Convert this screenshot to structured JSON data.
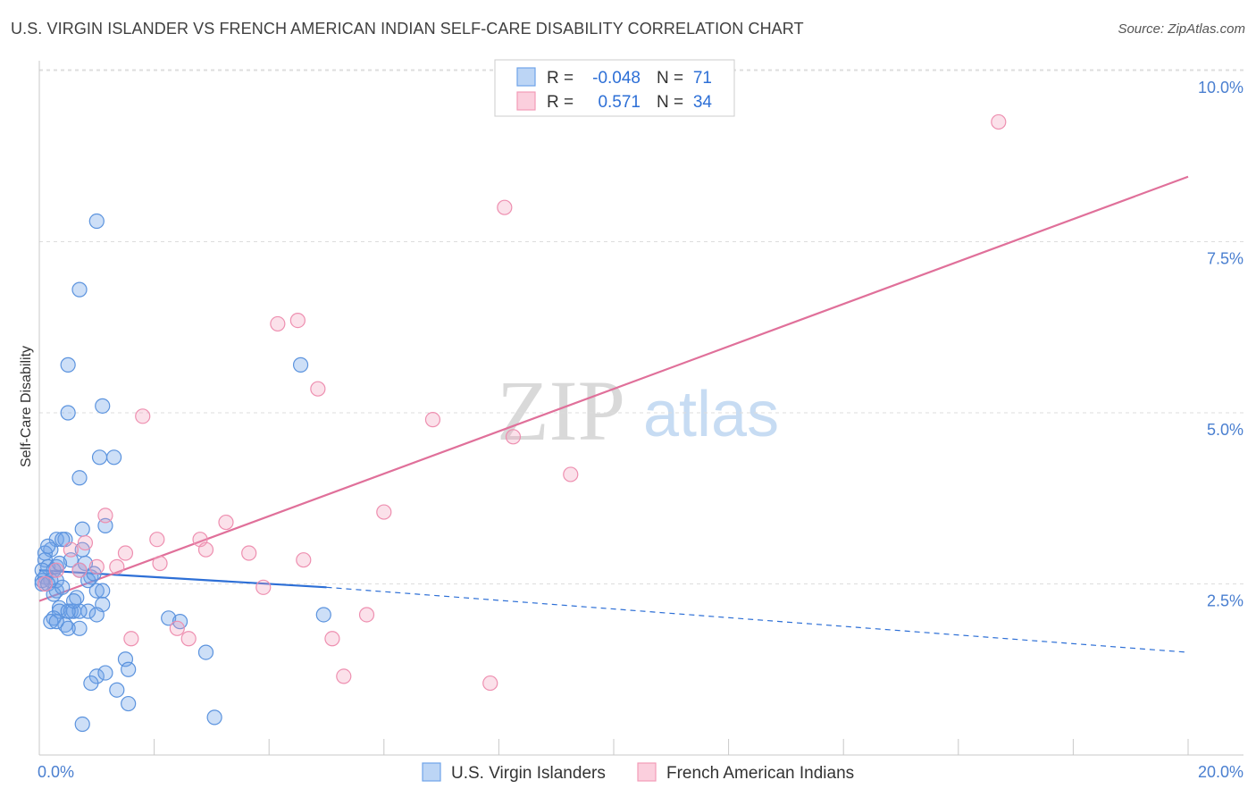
{
  "title": "U.S. VIRGIN ISLANDER VS FRENCH AMERICAN INDIAN SELF-CARE DISABILITY CORRELATION CHART",
  "source": "Source: ZipAtlas.com",
  "watermark": {
    "zip": "ZIP",
    "atlas": "atlas"
  },
  "colors": {
    "blue": "#6fa3e8",
    "blue_line": "#2d6fd6",
    "pink": "#f29bb8",
    "pink_line": "#e0709a",
    "grid": "#dddddd",
    "tick": "#4a7fd0"
  },
  "legend": {
    "rows": [
      {
        "r_label": "R =",
        "r_value": "-0.048",
        "n_label": "N =",
        "n_value": "71"
      },
      {
        "r_label": "R =",
        "r_value": "0.571",
        "n_label": "N =",
        "n_value": "34"
      }
    ]
  },
  "chart_data": {
    "type": "scatter",
    "ylabel": "Self-Care Disability",
    "xlim": [
      0,
      20
    ],
    "ylim": [
      0,
      10
    ],
    "x_tick_labels": [
      "0.0%",
      "20.0%"
    ],
    "y_ticks": [
      {
        "value": 2.5,
        "label": "2.5%"
      },
      {
        "value": 5.0,
        "label": "5.0%"
      },
      {
        "value": 7.5,
        "label": "7.5%"
      },
      {
        "value": 10.0,
        "label": "10.0%"
      }
    ],
    "grid": "horizontal dashed",
    "series": [
      {
        "name": "U.S. Virgin Islanders",
        "color": "#6fa3e8",
        "trend": {
          "x0": 0,
          "y0": 2.7,
          "x1": 5.0,
          "y1": 2.45,
          "dashed_to_x": 20,
          "dashed_to_y": 1.5
        },
        "points": [
          [
            1.0,
            7.8
          ],
          [
            0.7,
            6.8
          ],
          [
            0.5,
            5.7
          ],
          [
            0.5,
            5.0
          ],
          [
            1.1,
            5.1
          ],
          [
            1.3,
            4.35
          ],
          [
            1.05,
            4.35
          ],
          [
            0.7,
            4.05
          ],
          [
            1.15,
            3.35
          ],
          [
            0.75,
            3.3
          ],
          [
            0.3,
            3.15
          ],
          [
            0.45,
            3.15
          ],
          [
            0.4,
            3.15
          ],
          [
            0.2,
            3.0
          ],
          [
            0.1,
            2.95
          ],
          [
            0.75,
            3.0
          ],
          [
            0.1,
            2.85
          ],
          [
            0.15,
            2.75
          ],
          [
            0.3,
            2.75
          ],
          [
            0.55,
            2.85
          ],
          [
            0.8,
            2.8
          ],
          [
            0.05,
            2.7
          ],
          [
            0.25,
            2.7
          ],
          [
            0.7,
            2.7
          ],
          [
            0.1,
            2.6
          ],
          [
            0.2,
            2.55
          ],
          [
            0.05,
            2.55
          ],
          [
            0.3,
            2.55
          ],
          [
            0.9,
            2.6
          ],
          [
            0.85,
            2.55
          ],
          [
            0.05,
            2.5
          ],
          [
            0.15,
            2.5
          ],
          [
            1.0,
            2.4
          ],
          [
            1.1,
            2.4
          ],
          [
            0.3,
            2.4
          ],
          [
            0.25,
            2.35
          ],
          [
            0.65,
            2.3
          ],
          [
            0.35,
            2.15
          ],
          [
            1.1,
            2.2
          ],
          [
            0.85,
            2.1
          ],
          [
            0.35,
            2.1
          ],
          [
            0.55,
            2.1
          ],
          [
            0.6,
            2.1
          ],
          [
            0.7,
            2.1
          ],
          [
            0.5,
            2.1
          ],
          [
            0.25,
            2.0
          ],
          [
            1.0,
            2.05
          ],
          [
            2.25,
            2.0
          ],
          [
            0.45,
            1.9
          ],
          [
            0.7,
            1.85
          ],
          [
            0.5,
            1.85
          ],
          [
            0.2,
            1.95
          ],
          [
            0.3,
            1.95
          ],
          [
            2.45,
            1.95
          ],
          [
            4.95,
            2.05
          ],
          [
            1.5,
            1.4
          ],
          [
            2.9,
            1.5
          ],
          [
            1.55,
            1.25
          ],
          [
            1.0,
            1.15
          ],
          [
            1.15,
            1.2
          ],
          [
            0.9,
            1.05
          ],
          [
            1.35,
            0.95
          ],
          [
            1.55,
            0.75
          ],
          [
            3.05,
            0.55
          ],
          [
            0.75,
            0.45
          ],
          [
            4.55,
            5.7
          ],
          [
            0.35,
            2.8
          ],
          [
            0.6,
            2.25
          ],
          [
            0.15,
            3.05
          ],
          [
            0.4,
            2.45
          ],
          [
            0.95,
            2.65
          ]
        ]
      },
      {
        "name": "French American Indians",
        "color": "#f29bb8",
        "trend": {
          "x0": 0,
          "y0": 2.25,
          "x1": 20,
          "y1": 8.45
        },
        "points": [
          [
            16.7,
            9.25
          ],
          [
            8.1,
            8.0
          ],
          [
            4.5,
            6.35
          ],
          [
            4.15,
            6.3
          ],
          [
            4.85,
            5.35
          ],
          [
            1.8,
            4.95
          ],
          [
            6.85,
            4.9
          ],
          [
            8.25,
            4.65
          ],
          [
            9.25,
            4.1
          ],
          [
            6.0,
            3.55
          ],
          [
            1.15,
            3.5
          ],
          [
            3.25,
            3.4
          ],
          [
            0.8,
            3.1
          ],
          [
            2.05,
            3.15
          ],
          [
            2.8,
            3.15
          ],
          [
            1.5,
            2.95
          ],
          [
            2.9,
            3.0
          ],
          [
            3.65,
            2.95
          ],
          [
            4.6,
            2.85
          ],
          [
            0.55,
            3.0
          ],
          [
            2.1,
            2.8
          ],
          [
            1.0,
            2.75
          ],
          [
            1.35,
            2.75
          ],
          [
            0.7,
            2.7
          ],
          [
            0.3,
            2.7
          ],
          [
            0.1,
            2.5
          ],
          [
            3.9,
            2.45
          ],
          [
            5.7,
            2.05
          ],
          [
            2.4,
            1.85
          ],
          [
            1.6,
            1.7
          ],
          [
            2.6,
            1.7
          ],
          [
            5.1,
            1.7
          ],
          [
            5.3,
            1.15
          ],
          [
            7.85,
            1.05
          ]
        ]
      }
    ]
  }
}
